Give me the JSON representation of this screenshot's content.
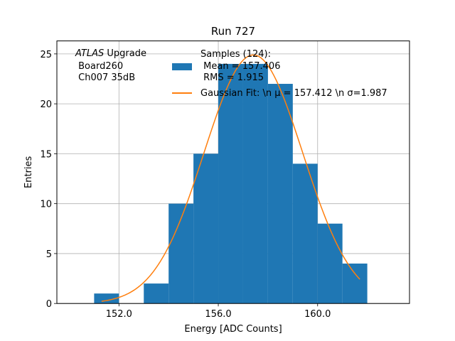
{
  "chart_data": {
    "type": "bar",
    "title": "Run 727",
    "xlabel": "Energy [ADC Counts]",
    "ylabel": "Entries",
    "xlim": [
      149.5,
      163.7
    ],
    "ylim": [
      0,
      26.3
    ],
    "xticks": [
      152,
      156,
      160
    ],
    "xtick_labels": [
      "152.0",
      "156.0",
      "160.0"
    ],
    "yticks": [
      0,
      5,
      10,
      15,
      20,
      25
    ],
    "ytick_labels": [
      "0",
      "5",
      "10",
      "15",
      "20",
      "25"
    ],
    "grid": true,
    "annotation": {
      "italic": "ATLAS",
      "rest": " Upgrade",
      "lines": [
        " Board260",
        " Ch007 35dB"
      ]
    },
    "histogram": {
      "bin_edges": [
        151,
        152,
        153,
        154,
        155,
        156,
        157,
        158,
        159,
        160,
        161,
        162
      ],
      "counts": [
        1,
        0,
        2,
        10,
        15,
        24,
        24,
        22,
        14,
        8,
        4
      ],
      "color": "#1f77b4",
      "legend_lines": [
        "Samples (124):",
        " Mean = 157.406",
        " RMS = 1.915"
      ]
    },
    "fit": {
      "type": "gaussian",
      "mu": 157.412,
      "sigma": 1.987,
      "amplitude": 24.9,
      "x_range": [
        151.3,
        161.7
      ],
      "color": "#ff7f0e",
      "legend_label": "Gaussian Fit: \\n μ = 157.412 \\n σ=1.987"
    },
    "legend_position": "top-right"
  }
}
